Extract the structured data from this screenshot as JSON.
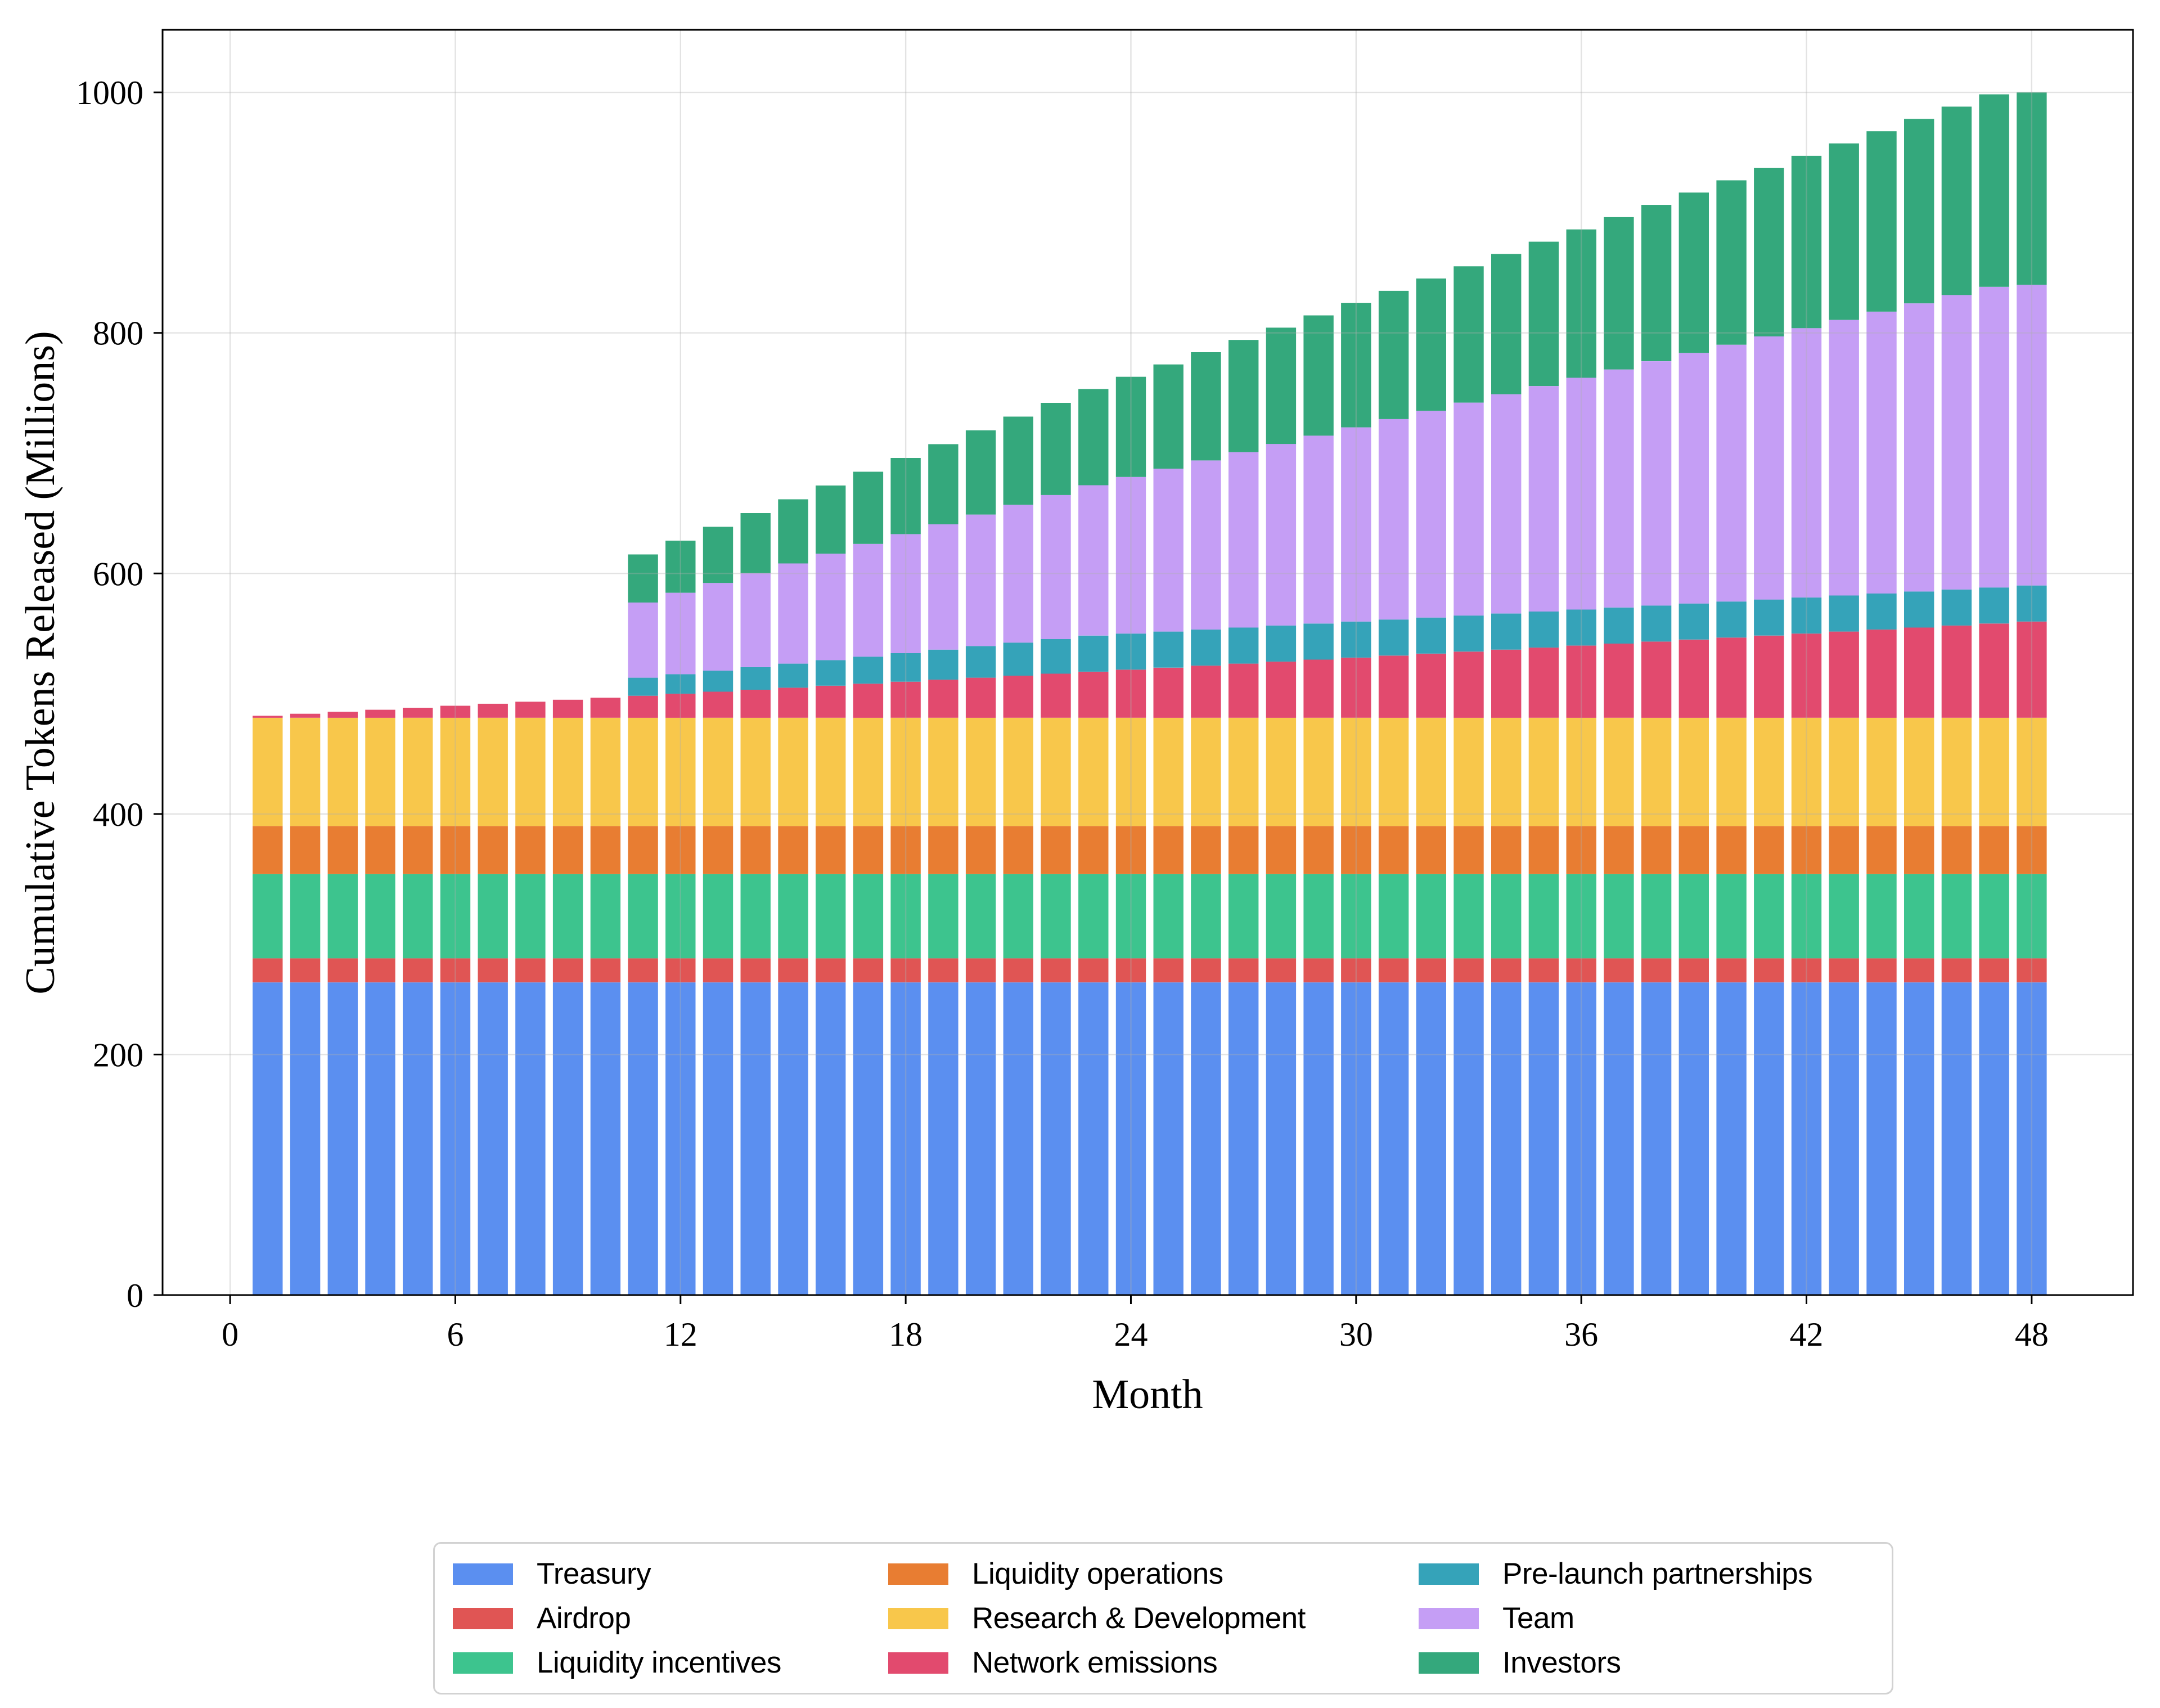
{
  "figure": {
    "background": "#ffffff"
  },
  "chart_data": {
    "type": "bar",
    "stacked": true,
    "title": "",
    "xlabel": "Month",
    "ylabel": "Cumulative Tokens Released (Millions)",
    "grid": true,
    "grid_color": "#b0b0b0",
    "legend_position": "bottom-center",
    "legend_columns": 3,
    "xlim": [
      -1.8,
      50.7
    ],
    "ylim": [
      0,
      1052
    ],
    "xticks": [
      0,
      6,
      12,
      18,
      24,
      30,
      36,
      42,
      48
    ],
    "yticks": [
      0,
      200,
      400,
      600,
      800,
      1000
    ],
    "x": [
      1,
      2,
      3,
      4,
      5,
      6,
      7,
      8,
      9,
      10,
      11,
      12,
      13,
      14,
      15,
      16,
      17,
      18,
      19,
      20,
      21,
      22,
      23,
      24,
      25,
      26,
      27,
      28,
      29,
      30,
      31,
      32,
      33,
      34,
      35,
      36,
      37,
      38,
      39,
      40,
      41,
      42,
      43,
      44,
      45,
      46,
      47,
      48
    ],
    "series": [
      {
        "name": "Treasury",
        "color": "#5B8FF0",
        "values": [
          260,
          260,
          260,
          260,
          260,
          260,
          260,
          260,
          260,
          260,
          260,
          260,
          260,
          260,
          260,
          260,
          260,
          260,
          260,
          260,
          260,
          260,
          260,
          260,
          260,
          260,
          260,
          260,
          260,
          260,
          260,
          260,
          260,
          260,
          260,
          260,
          260,
          260,
          260,
          260,
          260,
          260,
          260,
          260,
          260,
          260,
          260,
          260
        ]
      },
      {
        "name": "Airdrop",
        "color": "#E05554",
        "values": [
          20,
          20,
          20,
          20,
          20,
          20,
          20,
          20,
          20,
          20,
          20,
          20,
          20,
          20,
          20,
          20,
          20,
          20,
          20,
          20,
          20,
          20,
          20,
          20,
          20,
          20,
          20,
          20,
          20,
          20,
          20,
          20,
          20,
          20,
          20,
          20,
          20,
          20,
          20,
          20,
          20,
          20,
          20,
          20,
          20,
          20,
          20,
          20
        ]
      },
      {
        "name": "Liquidity incentives",
        "color": "#3DC48E",
        "values": [
          70,
          70,
          70,
          70,
          70,
          70,
          70,
          70,
          70,
          70,
          70,
          70,
          70,
          70,
          70,
          70,
          70,
          70,
          70,
          70,
          70,
          70,
          70,
          70,
          70,
          70,
          70,
          70,
          70,
          70,
          70,
          70,
          70,
          70,
          70,
          70,
          70,
          70,
          70,
          70,
          70,
          70,
          70,
          70,
          70,
          70,
          70,
          70
        ]
      },
      {
        "name": "Liquidity operations",
        "color": "#E87D32",
        "values": [
          40,
          40,
          40,
          40,
          40,
          40,
          40,
          40,
          40,
          40,
          40,
          40,
          40,
          40,
          40,
          40,
          40,
          40,
          40,
          40,
          40,
          40,
          40,
          40,
          40,
          40,
          40,
          40,
          40,
          40,
          40,
          40,
          40,
          40,
          40,
          40,
          40,
          40,
          40,
          40,
          40,
          40,
          40,
          40,
          40,
          40,
          40,
          40
        ]
      },
      {
        "name": "Research & Development",
        "color": "#F8C74B",
        "values": [
          90,
          90,
          90,
          90,
          90,
          90,
          90,
          90,
          90,
          90,
          90,
          90,
          90,
          90,
          90,
          90,
          90,
          90,
          90,
          90,
          90,
          90,
          90,
          90,
          90,
          90,
          90,
          90,
          90,
          90,
          90,
          90,
          90,
          90,
          90,
          90,
          90,
          90,
          90,
          90,
          90,
          90,
          90,
          90,
          90,
          90,
          90,
          90
        ]
      },
      {
        "name": "Network emissions",
        "color": "#E24A6E",
        "values": [
          1.67,
          3.33,
          5.0,
          6.67,
          8.33,
          10.0,
          11.67,
          13.33,
          15.0,
          16.67,
          18.33,
          20.0,
          21.67,
          23.33,
          25.0,
          26.67,
          28.33,
          30.0,
          31.67,
          33.33,
          35.0,
          36.67,
          38.33,
          40.0,
          41.67,
          43.33,
          45.0,
          46.67,
          48.33,
          50.0,
          51.67,
          53.33,
          55.0,
          56.67,
          58.33,
          60.0,
          61.67,
          63.33,
          65.0,
          66.67,
          68.33,
          70.0,
          71.67,
          73.33,
          75.0,
          76.67,
          78.33,
          80.0
        ]
      },
      {
        "name": "Pre-launch partnerships",
        "color": "#35A3B9",
        "values": [
          0,
          0,
          0,
          0,
          0,
          0,
          0,
          0,
          0,
          0,
          15.0,
          16.25,
          17.5,
          18.75,
          20.0,
          21.25,
          22.5,
          23.75,
          25.0,
          26.25,
          27.5,
          28.75,
          30.0,
          30.0,
          30.0,
          30.0,
          30.0,
          30.0,
          30.0,
          30.0,
          30.0,
          30.0,
          30.0,
          30.0,
          30.0,
          30.0,
          30.0,
          30.0,
          30.0,
          30.0,
          30.0,
          30.0,
          30.0,
          30.0,
          30.0,
          30.0,
          30.0,
          30.0
        ]
      },
      {
        "name": "Team",
        "color": "#C59EF5",
        "values": [
          0,
          0,
          0,
          0,
          0,
          0,
          0,
          0,
          0,
          0,
          62.5,
          67.71,
          72.92,
          78.13,
          83.33,
          88.54,
          93.75,
          98.96,
          104.17,
          109.38,
          114.58,
          119.79,
          125.0,
          130.21,
          135.42,
          140.63,
          145.83,
          151.04,
          156.25,
          161.46,
          166.67,
          171.88,
          177.08,
          182.29,
          187.5,
          192.71,
          197.92,
          203.13,
          208.33,
          213.54,
          218.75,
          223.96,
          229.17,
          234.38,
          239.58,
          244.79,
          250.0,
          250.0
        ]
      },
      {
        "name": "Investors",
        "color": "#34A87C",
        "values": [
          0,
          0,
          0,
          0,
          0,
          0,
          0,
          0,
          0,
          0,
          40.0,
          43.33,
          46.67,
          50.0,
          53.33,
          56.67,
          60.0,
          63.33,
          66.67,
          70.0,
          73.33,
          76.67,
          80.0,
          83.33,
          86.67,
          90.0,
          93.33,
          96.67,
          100.0,
          103.33,
          106.67,
          110.0,
          113.33,
          116.67,
          120.0,
          123.33,
          126.67,
          130.0,
          133.33,
          136.67,
          140.0,
          143.33,
          146.67,
          150.0,
          153.33,
          156.67,
          160.0,
          160.0
        ]
      }
    ]
  }
}
